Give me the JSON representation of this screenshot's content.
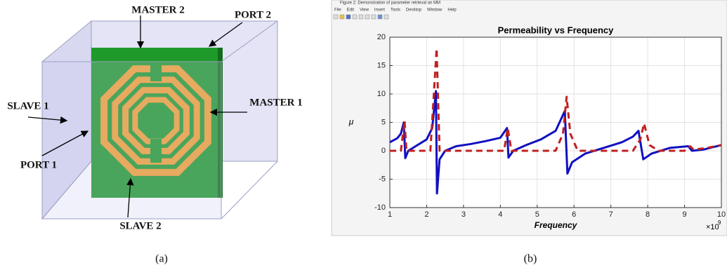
{
  "diagram": {
    "labels": {
      "master2": "MASTER 2",
      "port2": "PORT 2",
      "slave1": "SLAVE 1",
      "master1": "MASTER 1",
      "port1": "PORT 1",
      "slave2": "SLAVE 2"
    }
  },
  "window": {
    "title": "Figure 2: Demonstration of parameter retrieval on MM",
    "menu": [
      "File",
      "Edit",
      "View",
      "Insert",
      "Tools",
      "Desktop",
      "Window",
      "Help"
    ]
  },
  "captions": {
    "a": "(a)",
    "b": "(b)"
  },
  "chart_data": {
    "type": "line",
    "title": "Permeability vs Frequency",
    "x_label": "Frequency",
    "y_label": "μ",
    "x_multiplier": {
      "base": "×10",
      "exponent": "9"
    },
    "xlim": [
      1,
      10
    ],
    "ylim": [
      -10,
      20
    ],
    "xticks": [
      1,
      2,
      3,
      4,
      5,
      6,
      7,
      8,
      9,
      10
    ],
    "yticks": [
      -10,
      -5,
      0,
      5,
      10,
      15,
      20
    ],
    "grid": true,
    "series": [
      {
        "color": "#1010c0",
        "dash": false,
        "x": [
          1,
          1.2,
          1.3,
          1.38,
          1.42,
          1.5,
          1.7,
          2.0,
          2.15,
          2.25,
          2.28,
          2.35,
          2.5,
          2.8,
          3.2,
          3.6,
          4.0,
          4.18,
          4.22,
          4.35,
          4.7,
          5.1,
          5.5,
          5.75,
          5.82,
          5.95,
          6.3,
          6.8,
          7.3,
          7.6,
          7.75,
          7.88,
          8.1,
          8.6,
          9.1,
          9.2,
          9.5,
          10
        ],
        "values": [
          1.5,
          2.2,
          3,
          5,
          -1.3,
          0,
          0.8,
          2,
          4,
          10.5,
          -7.5,
          -1.5,
          0,
          0.8,
          1.2,
          1.7,
          2.3,
          4,
          -1.2,
          0,
          1,
          2,
          3.5,
          7,
          -4,
          -2,
          -0.5,
          0.5,
          1.5,
          2.5,
          3.5,
          -1.5,
          -0.5,
          0.5,
          0.8,
          0,
          0.2,
          1
        ]
      },
      {
        "color": "#c02020",
        "dash": true,
        "x": [
          1,
          1.3,
          1.4,
          1.45,
          2.1,
          2.27,
          2.35,
          4.1,
          4.2,
          4.3,
          5.5,
          5.7,
          5.8,
          5.9,
          6.1,
          7.6,
          7.8,
          7.9,
          8.05,
          8.3,
          9.0,
          9.15,
          9.25,
          9.6,
          10
        ],
        "values": [
          0,
          0,
          5.3,
          0,
          0,
          18,
          0,
          0,
          4,
          0,
          0,
          3,
          9.5,
          3,
          0,
          0,
          2,
          4.8,
          1,
          0,
          0,
          0.8,
          0.2,
          0.5,
          1
        ]
      }
    ]
  }
}
